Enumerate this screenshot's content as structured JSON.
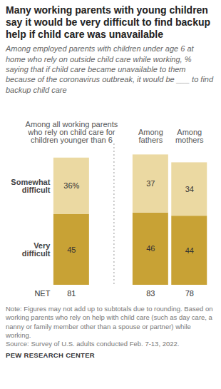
{
  "chart_data": {
    "type": "bar",
    "stacked": true,
    "data_labels": true,
    "tick_labels": false,
    "title": "Many working parents with young children say it would be very difficult to find backup help if child care was unavailable",
    "subtitle": "Among employed parents with children under age 6 at home who rely on outside child care while working, % saying that if child care became unavailable to them because of the coronavirus outbreak, it would be ___ to find backup child care",
    "categories": [
      "Among all working parents who rely on child care for children younger than 6",
      "Among fathers",
      "Among mothers"
    ],
    "series": [
      {
        "name": "Very difficult",
        "color": "#c8a235",
        "values": [
          45,
          46,
          44
        ]
      },
      {
        "name": "Somewhat difficult",
        "color": "#ebd9a2",
        "values": [
          36,
          37,
          34
        ],
        "value_labels": [
          "36%",
          "37",
          "34"
        ]
      }
    ],
    "net_label": "NET",
    "net_values": [
      81,
      83,
      78
    ],
    "ylim": [
      0,
      90
    ],
    "note": "Note: Figures may not add up to subtotals due to rounding. Based on working parents who rely on help with child care (such as day care, a nanny or family member other than a spouse or partner) while working.",
    "source": "Source: Survey of U.S. adults conducted Feb. 7-13, 2022.",
    "credit": "PEW RESEARCH CENTER"
  }
}
